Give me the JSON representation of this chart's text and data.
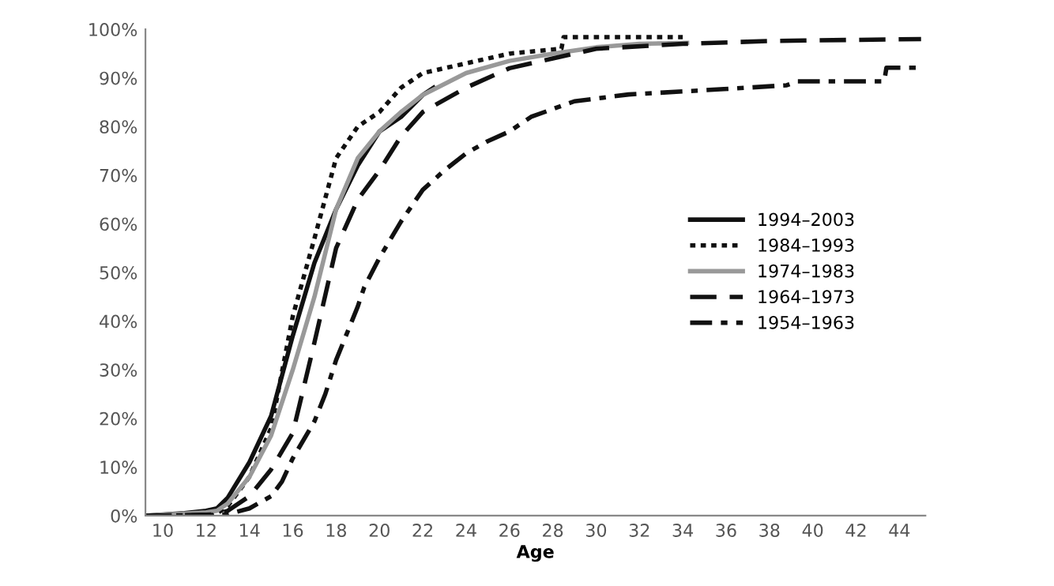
{
  "chart_data": {
    "type": "line",
    "xlabel": "Age",
    "xlim": [
      9.2,
      45.2
    ],
    "xticks": [
      10,
      12,
      14,
      16,
      18,
      20,
      22,
      24,
      26,
      28,
      30,
      32,
      34,
      36,
      38,
      40,
      42,
      44
    ],
    "ylim": [
      0,
      100
    ],
    "yticks": [
      {
        "value": 0,
        "label": "0%"
      },
      {
        "value": 10,
        "label": "10%"
      },
      {
        "value": 20,
        "label": "20%"
      },
      {
        "value": 30,
        "label": "30%"
      },
      {
        "value": 40,
        "label": "40%"
      },
      {
        "value": 50,
        "label": "50%"
      },
      {
        "value": 60,
        "label": "60%"
      },
      {
        "value": 70,
        "label": "70%"
      },
      {
        "value": 80,
        "label": "80%"
      },
      {
        "value": 90,
        "label": "90%"
      },
      {
        "value": 100,
        "label": "100%"
      }
    ],
    "grid": false,
    "legend": "right",
    "marker": "none",
    "series": [
      {
        "name": "1994–2003",
        "color": "#111111",
        "line_style": "solid",
        "x": [
          9.2,
          11,
          12,
          12.5,
          13,
          14,
          15,
          16,
          17,
          18,
          19,
          20,
          21,
          22,
          22.5
        ],
        "values": [
          0,
          0.5,
          1,
          1.5,
          3.7,
          11,
          20.5,
          37,
          52,
          63,
          72,
          79,
          82,
          86.5,
          88
        ]
      },
      {
        "name": "1984–1993",
        "color": "#111111",
        "line_style": "dotted",
        "x": [
          9.2,
          12,
          12.5,
          13,
          14,
          15,
          16,
          17,
          18,
          19,
          20,
          21,
          22,
          24,
          26,
          28.4,
          28.5,
          34
        ],
        "values": [
          0,
          0.3,
          0.5,
          2,
          8,
          18,
          41,
          57,
          73.5,
          80,
          83,
          88,
          91,
          93,
          95,
          96,
          98.4,
          98.4
        ]
      },
      {
        "name": "1974–1983",
        "color": "#999999",
        "line_style": "solid",
        "x": [
          9.2,
          12,
          12.5,
          13,
          14,
          15,
          16,
          17,
          18,
          19,
          20,
          21,
          22,
          24,
          26,
          28,
          30,
          32,
          34.2
        ],
        "values": [
          0,
          0.7,
          1,
          2.5,
          8,
          16.5,
          30,
          45,
          63,
          73.5,
          79,
          83,
          86.5,
          91,
          93.5,
          95,
          96.3,
          97,
          97.2
        ]
      },
      {
        "name": "1964–1973",
        "color": "#111111",
        "line_style": "dashed",
        "x": [
          9.2,
          12,
          12.5,
          13,
          14,
          15,
          16,
          17,
          18,
          19,
          20,
          21,
          22,
          24,
          26,
          28,
          30,
          34,
          38,
          45
        ],
        "values": [
          0,
          0.2,
          0.3,
          1,
          4,
          9.5,
          17,
          35.6,
          55,
          65,
          71,
          78,
          83,
          88,
          92,
          94,
          96,
          97,
          97.6,
          98
        ]
      },
      {
        "name": "1954–1963",
        "color": "#111111",
        "line_style": "dashdot",
        "x": [
          9.2,
          12,
          13,
          14,
          15,
          15.5,
          16,
          17,
          17.5,
          18,
          19,
          19.3,
          20,
          21,
          22,
          23,
          24,
          25,
          26,
          27,
          29,
          31.5,
          35.9,
          38.8,
          39.3,
          43.3,
          43.4,
          45
        ],
        "values": [
          0,
          0.1,
          0.3,
          1.5,
          4,
          7,
          11.8,
          19.4,
          25,
          32,
          43,
          47,
          53,
          60.5,
          67,
          71,
          74.5,
          77,
          79,
          82,
          85.2,
          86.6,
          87.7,
          88.5,
          89.3,
          89.3,
          92.1,
          92.1
        ]
      }
    ]
  }
}
